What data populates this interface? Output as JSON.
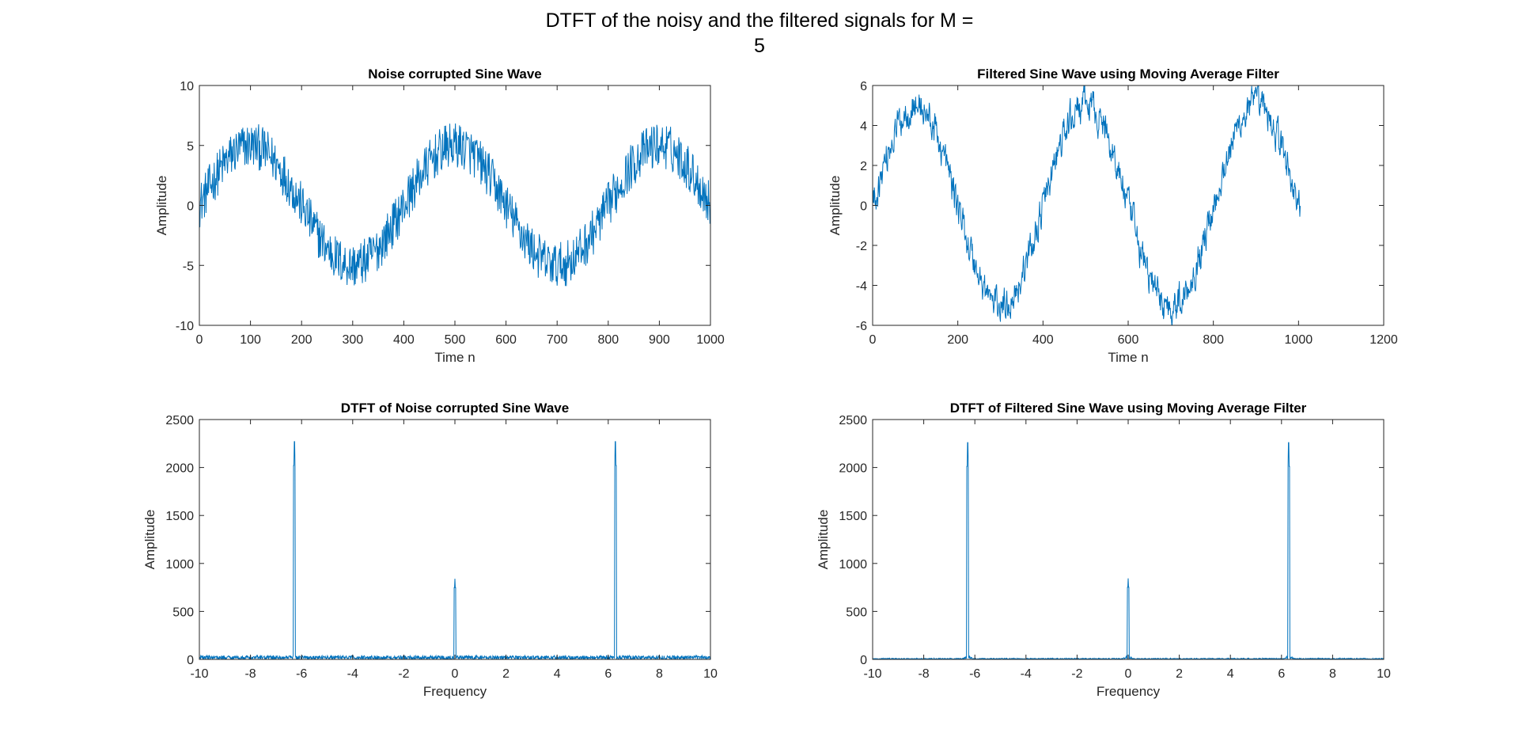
{
  "suptitle": {
    "line1": "DTFT of the noisy and the filtered signals for M =",
    "line2": "5"
  },
  "chart_data": [
    {
      "type": "line",
      "title": "Noise corrupted Sine Wave",
      "xlabel": "Time n",
      "ylabel": "Amplitude",
      "xlim": [
        0,
        1000
      ],
      "ylim": [
        -10,
        10
      ],
      "xticks": [
        "0",
        "100",
        "200",
        "300",
        "400",
        "500",
        "600",
        "700",
        "800",
        "900",
        "1000"
      ],
      "yticks": [
        "-10",
        "-5",
        "0",
        "5",
        "10"
      ],
      "grid": false,
      "color": "#0072BD",
      "signal": {
        "samples": 1001,
        "sine_amplitude": 5,
        "period": 400,
        "noise_amplitude": 1.6,
        "signal_type": "noisy"
      }
    },
    {
      "type": "line",
      "title": "Filtered Sine Wave using Moving Average Filter",
      "xlabel": "Time n",
      "ylabel": "Amplitude",
      "xlim": [
        0,
        1200
      ],
      "ylim": [
        -6,
        6
      ],
      "xticks": [
        "0",
        "200",
        "400",
        "600",
        "800",
        "1000",
        "1200"
      ],
      "yticks": [
        "-6",
        "-4",
        "-2",
        "0",
        "2",
        "4",
        "6"
      ],
      "grid": false,
      "color": "#0072BD",
      "signal": {
        "samples": 1005,
        "sine_amplitude": 5,
        "period": 400,
        "noise_amplitude": 0.7,
        "signal_type": "filtered"
      }
    },
    {
      "type": "line",
      "title": "DTFT of Noise corrupted Sine Wave",
      "xlabel": "Frequency",
      "ylabel": "Amplitude",
      "xlim": [
        -10,
        10
      ],
      "ylim": [
        0,
        2500
      ],
      "xticks": [
        "-10",
        "-8",
        "-6",
        "-4",
        "-2",
        "0",
        "2",
        "4",
        "6",
        "8",
        "10"
      ],
      "yticks": [
        "0",
        "500",
        "1000",
        "1500",
        "2000",
        "2500"
      ],
      "grid": false,
      "color": "#0072BD",
      "peaks": [
        {
          "x": -6.28,
          "y": 2270
        },
        {
          "x": 0,
          "y": 840
        },
        {
          "x": 6.28,
          "y": 2270
        }
      ],
      "noise_floor": 40
    },
    {
      "type": "line",
      "title": "DTFT of Filtered Sine Wave using Moving Average Filter",
      "xlabel": "Frequency",
      "ylabel": "Amplitude",
      "xlim": [
        -10,
        10
      ],
      "ylim": [
        0,
        2500
      ],
      "xticks": [
        "-10",
        "-8",
        "-6",
        "-4",
        "-2",
        "0",
        "2",
        "4",
        "6",
        "8",
        "10"
      ],
      "yticks": [
        "0",
        "500",
        "1000",
        "1500",
        "2000",
        "2500"
      ],
      "grid": false,
      "color": "#0072BD",
      "peaks": [
        {
          "x": -6.28,
          "y": 2260
        },
        {
          "x": 0,
          "y": 845
        },
        {
          "x": 6.28,
          "y": 2260
        }
      ],
      "noise_floor": 12
    }
  ]
}
